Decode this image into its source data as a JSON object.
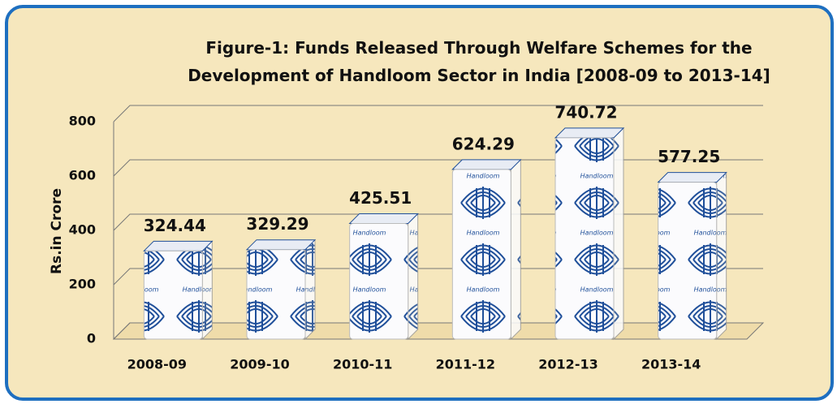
{
  "chart_data": {
    "type": "bar",
    "title": "Figure-1: Funds Released Through Welfare Schemes for the Development of Handloom Sector in India [2008-09 to 2013-14]",
    "y_label": "Rs.in Crore",
    "categories": [
      "2008-09",
      "2009-10",
      "2010-11",
      "2011-12",
      "2012-13",
      "2013-14"
    ],
    "values": [
      324.44,
      329.29,
      425.51,
      624.29,
      740.72,
      577.25
    ],
    "color": "#1f4f9a",
    "ylim": [
      0,
      800
    ],
    "yticks": [
      0,
      200,
      400,
      600,
      800
    ],
    "grid": true
  }
}
